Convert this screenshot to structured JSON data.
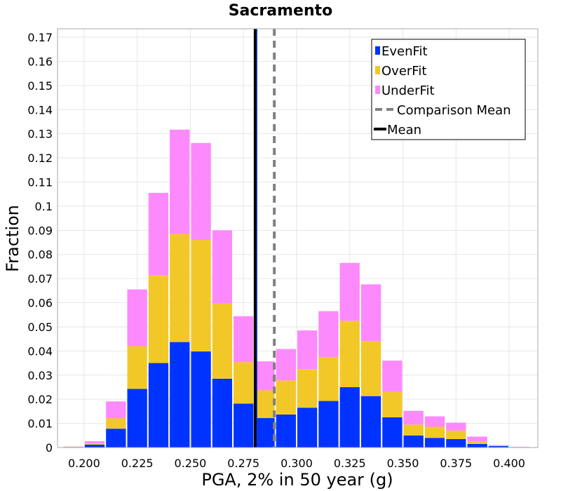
{
  "chart_data": {
    "type": "bar",
    "stacked": true,
    "title": "Sacramento",
    "xlabel": "PGA, 2% in 50 year (g)",
    "ylabel": "Fraction",
    "xlim": [
      0.1875,
      0.4135
    ],
    "ylim": [
      0,
      0.1735
    ],
    "bin_width": 0.01,
    "x_ticks": [
      "0.200",
      "0.225",
      "0.250",
      "0.275",
      "0.300",
      "0.325",
      "0.350",
      "0.375",
      "0.400"
    ],
    "y_ticks": [
      "0",
      "0.01",
      "0.02",
      "0.03",
      "0.04",
      "0.05",
      "0.06",
      "0.07",
      "0.08",
      "0.09",
      "0.1",
      "0.11",
      "0.12",
      "0.13",
      "0.14",
      "0.15",
      "0.16",
      "0.17"
    ],
    "x": [
      0.195,
      0.205,
      0.215,
      0.225,
      0.235,
      0.245,
      0.255,
      0.265,
      0.275,
      0.285,
      0.295,
      0.305,
      0.315,
      0.325,
      0.335,
      0.345,
      0.355,
      0.365,
      0.375,
      0.385,
      0.395,
      0.405
    ],
    "series": [
      {
        "name": "EvenFit",
        "color": "#0033ff",
        "values": [
          0.0002,
          0.0012,
          0.0078,
          0.0243,
          0.035,
          0.0437,
          0.0398,
          0.0285,
          0.0182,
          0.0122,
          0.0137,
          0.0165,
          0.0193,
          0.025,
          0.0213,
          0.0125,
          0.005,
          0.004,
          0.0035,
          0.0015,
          0.0006,
          0.0001
        ]
      },
      {
        "name": "OverFit",
        "color": "#f2c828",
        "values": [
          0.0001,
          0.0006,
          0.0043,
          0.0177,
          0.0363,
          0.0448,
          0.0462,
          0.0312,
          0.0172,
          0.0115,
          0.0141,
          0.016,
          0.0182,
          0.0275,
          0.0228,
          0.0105,
          0.0045,
          0.0046,
          0.0035,
          0.0011,
          0.0002,
          0.0001
        ]
      },
      {
        "name": "UnderFit",
        "color": "#fc8afc",
        "values": [
          0.0001,
          0.0008,
          0.007,
          0.0235,
          0.0342,
          0.0432,
          0.0402,
          0.0303,
          0.019,
          0.012,
          0.013,
          0.016,
          0.019,
          0.024,
          0.0235,
          0.013,
          0.0057,
          0.0043,
          0.0033,
          0.0019,
          0.0002,
          0.0001
        ]
      }
    ],
    "lines": [
      {
        "name": "Comparison Mean",
        "x": 0.2895,
        "color": "#808080",
        "style": "dashed"
      },
      {
        "name": "Mean",
        "x": 0.2805,
        "color": "#000000",
        "style": "solid"
      }
    ],
    "grid": true,
    "legend_position": "top-right"
  }
}
